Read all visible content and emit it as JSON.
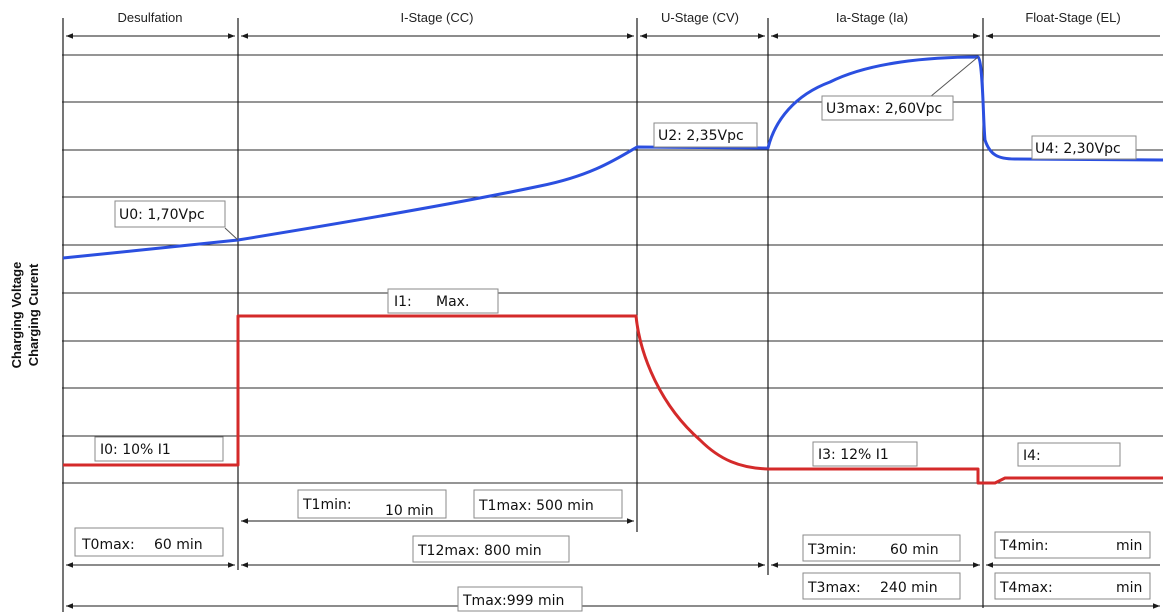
{
  "colors": {
    "voltage": "#2b4fe0",
    "current": "#d42a2a",
    "grid": "#2b2b2b"
  },
  "y_axis": {
    "line1": "Charging Voltage",
    "line2": "Charging Curent"
  },
  "stages": [
    {
      "name": "Desulfation"
    },
    {
      "name": "I-Stage  (CC)"
    },
    {
      "name": "U-Stage  (CV)"
    },
    {
      "name": "Ia-Stage  (Ia)"
    },
    {
      "name": "Float-Stage  (EL)"
    }
  ],
  "curve_labels": {
    "u0": "U0:  1,70Vpc",
    "u2": "U2: 2,35Vpc",
    "u3max": "U3max: 2,60Vpc",
    "u4": "U4:  2,30Vpc",
    "i1_name": "I1:",
    "i1_value": "Max.",
    "i0": "I0:  10% I1",
    "i3": "I3:  12% I1",
    "i4": "I4:"
  },
  "timing": {
    "t1min_name": "T1min:",
    "t1min_value": "10  min",
    "t1max": "T1max:   500  min",
    "t0max_name": "T0max:",
    "t0max_value": "60  min",
    "t12max": "T12max: 800  min",
    "t3min_name": "T3min:",
    "t3min_value": "60   min",
    "t3max_name": "T3max:",
    "t3max_value": "240   min",
    "t4min_name": "T4min:",
    "t4min_value": "min",
    "t4max_name": "T4max:",
    "t4max_value": "min",
    "tmax": "Tmax:999  min"
  }
}
